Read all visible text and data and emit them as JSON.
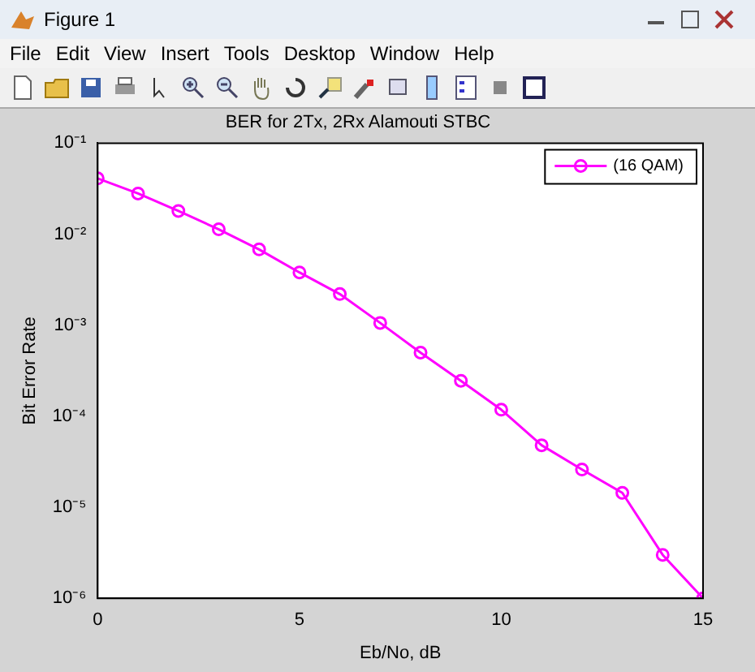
{
  "chart_data": {
    "type": "line",
    "title": "BER for 2Tx, 2Rx Alamouti STBC",
    "xlabel": "Eb/No, dB",
    "ylabel": "Bit Error Rate",
    "annotations": [
      "Figure 1",
      "File",
      "Edit",
      "View",
      "Insert",
      "Tools",
      "Desktop",
      "Window",
      "Help"
    ],
    "x": [
      0,
      1,
      2,
      3,
      4,
      5,
      6,
      7,
      8,
      9,
      10,
      11,
      12,
      13,
      14,
      15
    ],
    "series": [
      {
        "name": "(16 QAM)",
        "color": "#ff00ff",
        "values": [
          0.041,
          0.028,
          0.018,
          0.0113,
          0.0068,
          0.0038,
          0.0022,
          0.00106,
          0.0005,
          0.000245,
          0.000118,
          4.8e-05,
          2.6e-05,
          1.44e-05,
          3e-06,
          1e-06
        ]
      }
    ],
    "xlim": [
      0,
      15
    ],
    "xticks": [
      0,
      5,
      10,
      15
    ],
    "ylim": [
      1e-06,
      0.1
    ],
    "yticks": [
      {
        "value": 1e-06,
        "label": "10⁻⁶"
      },
      {
        "value": 1e-05,
        "label": "10⁻⁵"
      },
      {
        "value": 0.0001,
        "label": "10⁻⁴"
      },
      {
        "value": 0.001,
        "label": "10⁻³"
      },
      {
        "value": 0.01,
        "label": "10⁻²"
      },
      {
        "value": 0.1,
        "label": "10⁻¹"
      }
    ],
    "log": "y",
    "grid": false,
    "legend": "top right",
    "marker": "circle",
    "line_style": "solid"
  }
}
